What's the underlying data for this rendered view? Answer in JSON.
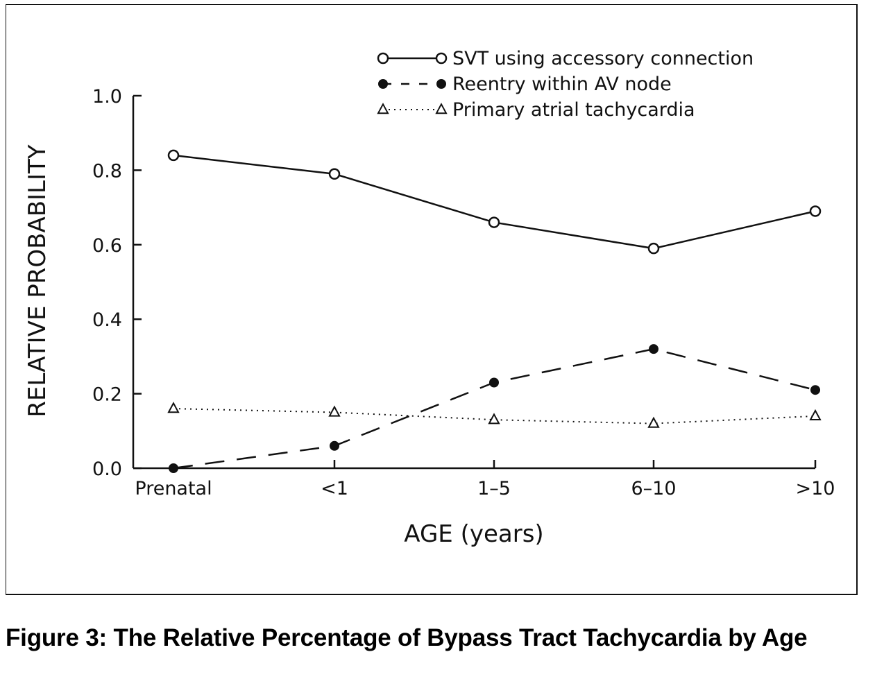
{
  "caption": "Figure 3: The Relative Percentage of Bypass Tract Tachycardia by Age",
  "chart_data": {
    "type": "line",
    "title": "",
    "xlabel": "AGE (years)",
    "ylabel": "RELATIVE PROBABILITY",
    "categories": [
      "Prenatal",
      "<1",
      "1–5",
      "6–10",
      ">10"
    ],
    "ylim": [
      0.0,
      1.0
    ],
    "yticks": [
      "0.0",
      "0.2",
      "0.4",
      "0.6",
      "0.8",
      "1.0"
    ],
    "grid": false,
    "legend_position": "top-right",
    "series": [
      {
        "name": "SVT using accessory connection",
        "values": [
          0.84,
          0.79,
          0.66,
          0.59,
          0.69
        ],
        "line": "solid",
        "marker": "open-circle",
        "color": "#111111"
      },
      {
        "name": "Reentry within AV node",
        "values": [
          0.0,
          0.06,
          0.23,
          0.32,
          0.21
        ],
        "line": "dashed",
        "marker": "filled-circle",
        "color": "#111111"
      },
      {
        "name": "Primary atrial tachycardia",
        "values": [
          0.16,
          0.15,
          0.13,
          0.12,
          0.14
        ],
        "line": "dotted",
        "marker": "open-triangle",
        "color": "#111111"
      }
    ]
  }
}
